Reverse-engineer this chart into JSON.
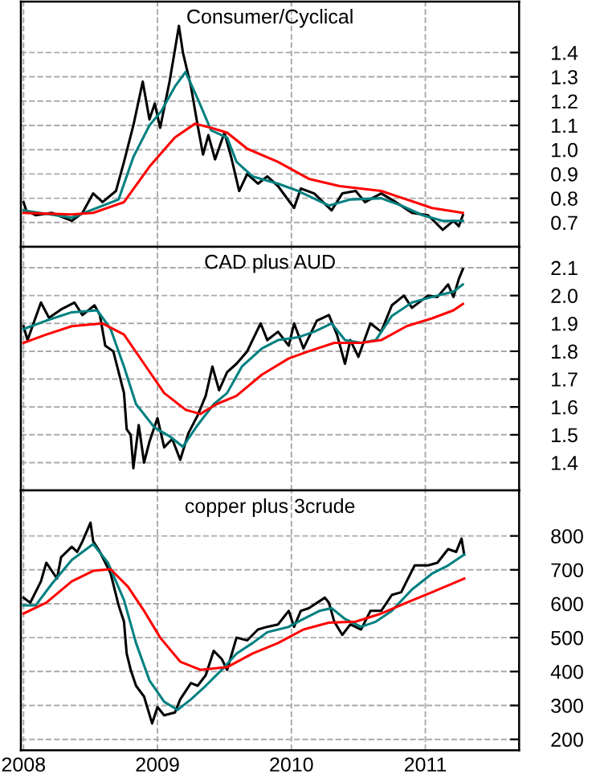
{
  "chart_data": [
    {
      "type": "line",
      "title": "Consumer/Cyclical",
      "xlim": [
        2007.98,
        2011.7
      ],
      "xticks": [
        2008,
        2009,
        2010,
        2011
      ],
      "ylim": [
        0.6,
        1.61
      ],
      "yticks": [
        {
          "value": 0.7,
          "label": "0.7"
        },
        {
          "value": 0.8,
          "label": "0.8"
        },
        {
          "value": 0.9,
          "label": "0.9"
        },
        {
          "value": 1.0,
          "label": "1.0"
        },
        {
          "value": 1.1,
          "label": "1.1"
        },
        {
          "value": 1.2,
          "label": "1.2"
        },
        {
          "value": 1.3,
          "label": "1.3"
        },
        {
          "value": 1.4,
          "label": "1.4"
        }
      ],
      "tick_labels": "y",
      "grid": true,
      "legend": false,
      "series": [
        {
          "color": "#000000",
          "x": [
            2008.0,
            2008.02,
            2008.09,
            2008.21,
            2008.36,
            2008.44,
            2008.52,
            2008.59,
            2008.69,
            2008.75,
            2008.82,
            2008.89,
            2008.94,
            2008.98,
            2009.02,
            2009.09,
            2009.13,
            2009.16,
            2009.19,
            2009.25,
            2009.3,
            2009.34,
            2009.38,
            2009.43,
            2009.5,
            2009.55,
            2009.61,
            2009.67,
            2009.75,
            2009.82,
            2009.9,
            2010.02,
            2010.07,
            2010.17,
            2010.3,
            2010.38,
            2010.48,
            2010.55,
            2010.67,
            2010.78,
            2010.9,
            2011.02,
            2011.13,
            2011.21,
            2011.25,
            2011.28
          ],
          "values": [
            0.784,
            0.75,
            0.73,
            0.74,
            0.707,
            0.74,
            0.82,
            0.784,
            0.83,
            0.95,
            1.1,
            1.28,
            1.125,
            1.19,
            1.09,
            1.28,
            1.41,
            1.51,
            1.4,
            1.26,
            1.1,
            0.98,
            1.06,
            0.96,
            1.07,
            0.97,
            0.83,
            0.9,
            0.86,
            0.89,
            0.85,
            0.76,
            0.84,
            0.82,
            0.75,
            0.82,
            0.83,
            0.784,
            0.82,
            0.784,
            0.74,
            0.73,
            0.67,
            0.707,
            0.685,
            0.73
          ]
        },
        {
          "color": "#008080",
          "x": [
            2008.0,
            2008.36,
            2008.71,
            2008.82,
            2008.94,
            2009.03,
            2009.13,
            2009.21,
            2009.3,
            2009.4,
            2009.52,
            2009.59,
            2009.71,
            2009.9,
            2010.05,
            2010.28,
            2010.44,
            2010.67,
            2010.82,
            2010.98,
            2011.13,
            2011.28
          ],
          "values": [
            0.75,
            0.72,
            0.795,
            0.97,
            1.1,
            1.16,
            1.26,
            1.32,
            1.21,
            1.08,
            1.05,
            0.95,
            0.89,
            0.86,
            0.83,
            0.77,
            0.795,
            0.8,
            0.77,
            0.73,
            0.707,
            0.707
          ]
        },
        {
          "color": "#ff0000",
          "x": [
            2008.0,
            2008.36,
            2008.52,
            2008.75,
            2008.94,
            2009.13,
            2009.28,
            2009.4,
            2009.52,
            2009.67,
            2009.9,
            2010.13,
            2010.36,
            2010.67,
            2010.86,
            2011.05,
            2011.28
          ],
          "values": [
            0.74,
            0.733,
            0.74,
            0.784,
            0.93,
            1.05,
            1.107,
            1.09,
            1.07,
            1.004,
            0.95,
            0.88,
            0.85,
            0.83,
            0.795,
            0.76,
            0.74
          ]
        }
      ]
    },
    {
      "type": "line",
      "title": "CAD plus AUD",
      "xlim": [
        2007.98,
        2011.7
      ],
      "xticks": [
        2008,
        2009,
        2010,
        2011
      ],
      "ylim": [
        1.3,
        2.175
      ],
      "yticks": [
        {
          "value": 1.4,
          "label": "1.4"
        },
        {
          "value": 1.5,
          "label": "1.5"
        },
        {
          "value": 1.6,
          "label": "1.6"
        },
        {
          "value": 1.7,
          "label": "1.7"
        },
        {
          "value": 1.8,
          "label": "1.8"
        },
        {
          "value": 1.9,
          "label": "1.9"
        },
        {
          "value": 2.0,
          "label": "2.0"
        },
        {
          "value": 2.1,
          "label": "2.1"
        }
      ],
      "tick_labels": "y",
      "grid": true,
      "legend": false,
      "series": [
        {
          "color": "#000000",
          "x": [
            2008.0,
            2008.03,
            2008.13,
            2008.19,
            2008.28,
            2008.38,
            2008.44,
            2008.53,
            2008.57,
            2008.61,
            2008.67,
            2008.71,
            2008.75,
            2008.77,
            2008.8,
            2008.82,
            2008.86,
            2008.9,
            2008.94,
            2009.0,
            2009.05,
            2009.11,
            2009.17,
            2009.23,
            2009.3,
            2009.36,
            2009.41,
            2009.46,
            2009.52,
            2009.59,
            2009.67,
            2009.77,
            2009.82,
            2009.9,
            2009.98,
            2010.02,
            2010.09,
            2010.19,
            2010.28,
            2010.34,
            2010.4,
            2010.44,
            2010.5,
            2010.59,
            2010.67,
            2010.75,
            2010.84,
            2010.9,
            2011.02,
            2011.09,
            2011.17,
            2011.21,
            2011.25,
            2011.28
          ],
          "values": [
            1.89,
            1.84,
            1.975,
            1.92,
            1.95,
            1.975,
            1.93,
            1.965,
            1.93,
            1.82,
            1.8,
            1.725,
            1.65,
            1.52,
            1.5,
            1.38,
            1.535,
            1.4,
            1.475,
            1.56,
            1.455,
            1.485,
            1.41,
            1.505,
            1.57,
            1.64,
            1.745,
            1.66,
            1.725,
            1.755,
            1.8,
            1.9,
            1.84,
            1.87,
            1.82,
            1.9,
            1.81,
            1.91,
            1.93,
            1.86,
            1.755,
            1.84,
            1.78,
            1.9,
            1.87,
            1.965,
            2.0,
            1.956,
            2.0,
            1.995,
            2.04,
            1.995,
            2.06,
            2.095
          ]
        },
        {
          "color": "#008080",
          "x": [
            2008.0,
            2008.17,
            2008.36,
            2008.55,
            2008.65,
            2008.75,
            2008.84,
            2008.98,
            2009.09,
            2009.19,
            2009.3,
            2009.42,
            2009.52,
            2009.63,
            2009.78,
            2009.9,
            2010.05,
            2010.17,
            2010.3,
            2010.4,
            2010.52,
            2010.63,
            2010.75,
            2010.9,
            2011.05,
            2011.21,
            2011.28
          ],
          "values": [
            1.88,
            1.91,
            1.94,
            1.947,
            1.88,
            1.745,
            1.61,
            1.525,
            1.495,
            1.457,
            1.535,
            1.61,
            1.65,
            1.745,
            1.81,
            1.84,
            1.85,
            1.87,
            1.9,
            1.84,
            1.83,
            1.84,
            1.927,
            1.975,
            1.995,
            2.014,
            2.04
          ]
        },
        {
          "color": "#ff0000",
          "x": [
            2008.0,
            2008.17,
            2008.36,
            2008.59,
            2008.75,
            2008.9,
            2009.05,
            2009.21,
            2009.32,
            2009.44,
            2009.59,
            2009.78,
            2009.98,
            2010.13,
            2010.32,
            2010.52,
            2010.67,
            2010.86,
            2011.05,
            2011.21,
            2011.28
          ],
          "values": [
            1.83,
            1.86,
            1.89,
            1.9,
            1.86,
            1.755,
            1.65,
            1.59,
            1.575,
            1.61,
            1.64,
            1.716,
            1.774,
            1.8,
            1.83,
            1.83,
            1.84,
            1.89,
            1.918,
            1.947,
            1.97
          ]
        }
      ]
    },
    {
      "type": "line",
      "title": "copper plus 3crude",
      "xlim": [
        2007.98,
        2011.7
      ],
      "xticks": [
        2008,
        2009,
        2010,
        2011
      ],
      "ylim": [
        168,
        934
      ],
      "yticks": [
        200,
        300,
        400,
        500,
        600,
        700,
        800
      ],
      "grid": true,
      "legend": false,
      "series": [
        {
          "color": "#000000",
          "x": [
            2008.0,
            2008.05,
            2008.13,
            2008.17,
            2008.25,
            2008.28,
            2008.36,
            2008.4,
            2008.44,
            2008.5,
            2008.52,
            2008.57,
            2008.65,
            2008.71,
            2008.75,
            2008.77,
            2008.8,
            2008.84,
            2008.9,
            2008.96,
            2009.0,
            2009.05,
            2009.13,
            2009.17,
            2009.25,
            2009.3,
            2009.36,
            2009.42,
            2009.48,
            2009.52,
            2009.59,
            2009.67,
            2009.75,
            2009.82,
            2009.9,
            2009.98,
            2010.02,
            2010.07,
            2010.13,
            2010.25,
            2010.28,
            2010.32,
            2010.38,
            2010.44,
            2010.52,
            2010.59,
            2010.67,
            2010.75,
            2010.82,
            2010.86,
            2010.92,
            2011.02,
            2011.09,
            2011.17,
            2011.23,
            2011.27,
            2011.29
          ],
          "values": [
            618,
            603,
            666,
            721,
            674,
            737,
            768,
            753,
            784,
            839,
            784,
            753,
            690,
            595,
            547,
            453,
            405,
            358,
            326,
            247,
            295,
            271,
            279,
            318,
            366,
            358,
            389,
            461,
            437,
            405,
            500,
            492,
            524,
            532,
            539,
            579,
            532,
            579,
            587,
            618,
            603,
            547,
            508,
            539,
            524,
            579,
            579,
            626,
            634,
            666,
            713,
            713,
            721,
            761,
            753,
            792,
            745
          ]
        },
        {
          "color": "#008080",
          "x": [
            2008.0,
            2008.09,
            2008.21,
            2008.36,
            2008.52,
            2008.63,
            2008.75,
            2008.84,
            2008.94,
            2009.05,
            2009.15,
            2009.25,
            2009.36,
            2009.48,
            2009.59,
            2009.71,
            2009.82,
            2009.98,
            2010.09,
            2010.21,
            2010.3,
            2010.4,
            2010.52,
            2010.63,
            2010.75,
            2010.9,
            2011.05,
            2011.17,
            2011.29
          ],
          "values": [
            595,
            595,
            658,
            729,
            776,
            721,
            611,
            484,
            374,
            311,
            287,
            318,
            358,
            405,
            453,
            484,
            516,
            532,
            555,
            579,
            587,
            555,
            532,
            547,
            579,
            642,
            689,
            713,
            745
          ]
        },
        {
          "color": "#ff0000",
          "x": [
            2008.0,
            2008.17,
            2008.36,
            2008.52,
            2008.65,
            2008.78,
            2008.9,
            2009.02,
            2009.17,
            2009.32,
            2009.52,
            2009.71,
            2009.9,
            2010.09,
            2010.28,
            2010.48,
            2010.67,
            2010.86,
            2011.05,
            2011.29
          ],
          "values": [
            571,
            603,
            666,
            697,
            702,
            650,
            579,
            500,
            429,
            405,
            413,
            453,
            484,
            524,
            544,
            547,
            571,
            603,
            634,
            674
          ]
        }
      ]
    }
  ]
}
